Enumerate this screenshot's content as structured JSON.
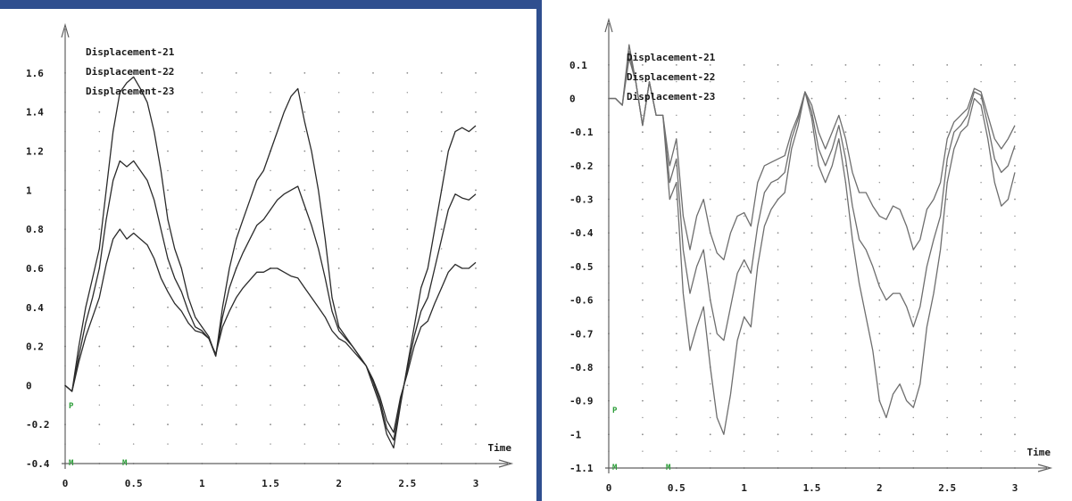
{
  "colors": {
    "frame_accent": "#2f4f8f",
    "grid_dot": "#8a8a8a",
    "axis": "#606060",
    "series_left": "#2b2b2b",
    "series_right": "#6e6e6e",
    "marker_green": "#2e9e3a"
  },
  "chart_data": [
    {
      "type": "line",
      "xlabel": "Time",
      "xlim": [
        0,
        3
      ],
      "ylim": [
        -0.4,
        1.7
      ],
      "x_ticks": [
        {
          "value": 0,
          "label": "0"
        },
        {
          "value": 0.5,
          "label": "0.5"
        },
        {
          "value": 1,
          "label": "1"
        },
        {
          "value": 1.5,
          "label": "1.5"
        },
        {
          "value": 2,
          "label": "2"
        },
        {
          "value": 2.5,
          "label": "2.5"
        },
        {
          "value": 3,
          "label": "3"
        }
      ],
      "y_ticks": [
        {
          "value": -0.4,
          "label": "-0.4"
        },
        {
          "value": -0.2,
          "label": "-0.2"
        },
        {
          "value": 0,
          "label": "0"
        },
        {
          "value": 0.2,
          "label": "0.2"
        },
        {
          "value": 0.4,
          "label": "0.4"
        },
        {
          "value": 0.6,
          "label": "0.6"
        },
        {
          "value": 0.8,
          "label": "0.8"
        },
        {
          "value": 1,
          "label": "1"
        },
        {
          "value": 1.2,
          "label": "1.2"
        },
        {
          "value": 1.4,
          "label": "1.4"
        },
        {
          "value": 1.6,
          "label": "1.6"
        }
      ],
      "grid": "dotted",
      "legend": "top-left",
      "series": [
        {
          "name": "Displacement-21",
          "x": [
            0,
            0.05,
            0.1,
            0.15,
            0.2,
            0.25,
            0.3,
            0.35,
            0.4,
            0.45,
            0.5,
            0.55,
            0.6,
            0.65,
            0.7,
            0.75,
            0.8,
            0.85,
            0.9,
            0.95,
            1.0,
            1.05,
            1.1,
            1.15,
            1.2,
            1.25,
            1.3,
            1.35,
            1.4,
            1.45,
            1.5,
            1.55,
            1.6,
            1.65,
            1.7,
            1.75,
            1.8,
            1.85,
            1.9,
            1.95,
            2.0,
            2.05,
            2.1,
            2.15,
            2.2,
            2.25,
            2.3,
            2.35,
            2.4,
            2.45,
            2.5,
            2.55,
            2.6,
            2.65,
            2.7,
            2.75,
            2.8,
            2.85,
            2.9,
            2.95,
            3.0
          ],
          "values": [
            0,
            -0.03,
            0.2,
            0.4,
            0.55,
            0.7,
            1.0,
            1.3,
            1.5,
            1.55,
            1.58,
            1.52,
            1.45,
            1.3,
            1.1,
            0.85,
            0.7,
            0.6,
            0.45,
            0.35,
            0.3,
            0.25,
            0.15,
            0.4,
            0.6,
            0.75,
            0.85,
            0.95,
            1.05,
            1.1,
            1.2,
            1.3,
            1.4,
            1.48,
            1.52,
            1.35,
            1.2,
            1.0,
            0.75,
            0.45,
            0.3,
            0.25,
            0.2,
            0.15,
            0.1,
            0.0,
            -0.1,
            -0.25,
            -0.32,
            -0.1,
            0.1,
            0.3,
            0.5,
            0.6,
            0.8,
            1.0,
            1.2,
            1.3,
            1.32,
            1.3,
            1.33
          ]
        },
        {
          "name": "Displacement-22",
          "x": [
            0,
            0.05,
            0.1,
            0.15,
            0.2,
            0.25,
            0.3,
            0.35,
            0.4,
            0.45,
            0.5,
            0.55,
            0.6,
            0.65,
            0.7,
            0.75,
            0.8,
            0.85,
            0.9,
            0.95,
            1.0,
            1.05,
            1.1,
            1.15,
            1.2,
            1.25,
            1.3,
            1.35,
            1.4,
            1.45,
            1.5,
            1.55,
            1.6,
            1.65,
            1.7,
            1.75,
            1.8,
            1.85,
            1.9,
            1.95,
            2.0,
            2.05,
            2.1,
            2.15,
            2.2,
            2.25,
            2.3,
            2.35,
            2.4,
            2.45,
            2.5,
            2.55,
            2.6,
            2.65,
            2.7,
            2.75,
            2.8,
            2.85,
            2.9,
            2.95,
            3.0
          ],
          "values": [
            0,
            -0.03,
            0.15,
            0.32,
            0.45,
            0.6,
            0.85,
            1.05,
            1.15,
            1.12,
            1.15,
            1.1,
            1.05,
            0.95,
            0.8,
            0.65,
            0.55,
            0.48,
            0.38,
            0.3,
            0.28,
            0.24,
            0.15,
            0.35,
            0.5,
            0.6,
            0.68,
            0.75,
            0.82,
            0.85,
            0.9,
            0.95,
            0.98,
            1.0,
            1.02,
            0.92,
            0.82,
            0.7,
            0.55,
            0.38,
            0.28,
            0.24,
            0.2,
            0.15,
            0.1,
            0.02,
            -0.08,
            -0.22,
            -0.28,
            -0.08,
            0.08,
            0.25,
            0.38,
            0.45,
            0.6,
            0.75,
            0.9,
            0.98,
            0.96,
            0.95,
            0.98
          ]
        },
        {
          "name": "Displacement-23",
          "x": [
            0,
            0.05,
            0.1,
            0.15,
            0.2,
            0.25,
            0.3,
            0.35,
            0.4,
            0.45,
            0.5,
            0.55,
            0.6,
            0.65,
            0.7,
            0.75,
            0.8,
            0.85,
            0.9,
            0.95,
            1.0,
            1.05,
            1.1,
            1.15,
            1.2,
            1.25,
            1.3,
            1.35,
            1.4,
            1.45,
            1.5,
            1.55,
            1.6,
            1.65,
            1.7,
            1.75,
            1.8,
            1.85,
            1.9,
            1.95,
            2.0,
            2.05,
            2.1,
            2.15,
            2.2,
            2.25,
            2.3,
            2.35,
            2.4,
            2.45,
            2.5,
            2.55,
            2.6,
            2.65,
            2.7,
            2.75,
            2.8,
            2.85,
            2.9,
            2.95,
            3.0
          ],
          "values": [
            0,
            -0.03,
            0.12,
            0.25,
            0.35,
            0.45,
            0.62,
            0.75,
            0.8,
            0.75,
            0.78,
            0.75,
            0.72,
            0.65,
            0.55,
            0.48,
            0.42,
            0.38,
            0.32,
            0.28,
            0.27,
            0.24,
            0.16,
            0.3,
            0.38,
            0.45,
            0.5,
            0.54,
            0.58,
            0.58,
            0.6,
            0.6,
            0.58,
            0.56,
            0.55,
            0.5,
            0.45,
            0.4,
            0.35,
            0.28,
            0.24,
            0.22,
            0.18,
            0.14,
            0.1,
            0.03,
            -0.06,
            -0.18,
            -0.24,
            -0.06,
            0.06,
            0.2,
            0.3,
            0.33,
            0.42,
            0.5,
            0.58,
            0.62,
            0.6,
            0.6,
            0.63
          ]
        }
      ]
    },
    {
      "type": "line",
      "xlabel": "Time",
      "xlim": [
        0,
        3
      ],
      "ylim": [
        -1.1,
        0.15
      ],
      "x_ticks": [
        {
          "value": 0,
          "label": "0"
        },
        {
          "value": 0.5,
          "label": "0.5"
        },
        {
          "value": 1,
          "label": "1"
        },
        {
          "value": 1.5,
          "label": "1.5"
        },
        {
          "value": 2,
          "label": "2"
        },
        {
          "value": 2.5,
          "label": "2.5"
        },
        {
          "value": 3,
          "label": "3"
        }
      ],
      "y_ticks": [
        {
          "value": -1.1,
          "label": "-1.1"
        },
        {
          "value": -1.0,
          "label": "-1"
        },
        {
          "value": -0.9,
          "label": "-0.9"
        },
        {
          "value": -0.8,
          "label": "-0.8"
        },
        {
          "value": -0.7,
          "label": "-0.7"
        },
        {
          "value": -0.6,
          "label": "-0.6"
        },
        {
          "value": -0.5,
          "label": "-0.5"
        },
        {
          "value": -0.4,
          "label": "-0.4"
        },
        {
          "value": -0.3,
          "label": "-0.3"
        },
        {
          "value": -0.2,
          "label": "-0.2"
        },
        {
          "value": -0.1,
          "label": "-0.1"
        },
        {
          "value": 0,
          "label": "0"
        },
        {
          "value": 0.1,
          "label": "0.1"
        }
      ],
      "grid": "dotted",
      "legend": "top-left",
      "series": [
        {
          "name": "Displacement-21",
          "x": [
            0,
            0.05,
            0.1,
            0.15,
            0.2,
            0.25,
            0.3,
            0.35,
            0.4,
            0.45,
            0.5,
            0.55,
            0.6,
            0.65,
            0.7,
            0.75,
            0.8,
            0.85,
            0.9,
            0.95,
            1.0,
            1.05,
            1.1,
            1.15,
            1.2,
            1.25,
            1.3,
            1.35,
            1.4,
            1.45,
            1.5,
            1.55,
            1.6,
            1.65,
            1.7,
            1.75,
            1.8,
            1.85,
            1.9,
            1.95,
            2.0,
            2.05,
            2.1,
            2.15,
            2.2,
            2.25,
            2.3,
            2.35,
            2.4,
            2.45,
            2.5,
            2.55,
            2.6,
            2.65,
            2.7,
            2.75,
            2.8,
            2.85,
            2.9,
            2.95,
            3.0
          ],
          "values": [
            0,
            0,
            -0.02,
            0.12,
            0.05,
            -0.08,
            0.05,
            -0.05,
            -0.05,
            -0.2,
            -0.12,
            -0.35,
            -0.45,
            -0.35,
            -0.3,
            -0.4,
            -0.46,
            -0.48,
            -0.4,
            -0.35,
            -0.34,
            -0.38,
            -0.25,
            -0.2,
            -0.19,
            -0.18,
            -0.17,
            -0.1,
            -0.05,
            0.02,
            -0.02,
            -0.1,
            -0.15,
            -0.1,
            -0.05,
            -0.12,
            -0.22,
            -0.28,
            -0.28,
            -0.32,
            -0.35,
            -0.36,
            -0.32,
            -0.33,
            -0.38,
            -0.45,
            -0.42,
            -0.33,
            -0.3,
            -0.25,
            -0.12,
            -0.07,
            -0.05,
            -0.03,
            0.03,
            0.02,
            -0.05,
            -0.12,
            -0.15,
            -0.12,
            -0.08
          ]
        },
        {
          "name": "Displacement-22",
          "x": [
            0,
            0.05,
            0.1,
            0.15,
            0.2,
            0.25,
            0.3,
            0.35,
            0.4,
            0.45,
            0.5,
            0.55,
            0.6,
            0.65,
            0.7,
            0.75,
            0.8,
            0.85,
            0.9,
            0.95,
            1.0,
            1.05,
            1.1,
            1.15,
            1.2,
            1.25,
            1.3,
            1.35,
            1.4,
            1.45,
            1.5,
            1.55,
            1.6,
            1.65,
            1.7,
            1.75,
            1.8,
            1.85,
            1.9,
            1.95,
            2.0,
            2.05,
            2.1,
            2.15,
            2.2,
            2.25,
            2.3,
            2.35,
            2.4,
            2.45,
            2.5,
            2.55,
            2.6,
            2.65,
            2.7,
            2.75,
            2.8,
            2.85,
            2.9,
            2.95,
            3.0
          ],
          "values": [
            0,
            0,
            -0.02,
            0.14,
            0.05,
            -0.08,
            0.05,
            -0.05,
            -0.05,
            -0.25,
            -0.18,
            -0.45,
            -0.58,
            -0.5,
            -0.45,
            -0.6,
            -0.7,
            -0.72,
            -0.62,
            -0.52,
            -0.48,
            -0.52,
            -0.38,
            -0.28,
            -0.25,
            -0.24,
            -0.22,
            -0.12,
            -0.06,
            0.02,
            -0.04,
            -0.15,
            -0.2,
            -0.15,
            -0.08,
            -0.18,
            -0.32,
            -0.42,
            -0.45,
            -0.5,
            -0.56,
            -0.6,
            -0.58,
            -0.58,
            -0.62,
            -0.68,
            -0.62,
            -0.5,
            -0.42,
            -0.35,
            -0.18,
            -0.1,
            -0.08,
            -0.05,
            0.02,
            0.01,
            -0.08,
            -0.18,
            -0.22,
            -0.2,
            -0.14
          ]
        },
        {
          "name": "Displacement-23",
          "x": [
            0,
            0.05,
            0.1,
            0.15,
            0.2,
            0.25,
            0.3,
            0.35,
            0.4,
            0.45,
            0.5,
            0.55,
            0.6,
            0.65,
            0.7,
            0.75,
            0.8,
            0.85,
            0.9,
            0.95,
            1.0,
            1.05,
            1.1,
            1.15,
            1.2,
            1.25,
            1.3,
            1.35,
            1.4,
            1.45,
            1.5,
            1.55,
            1.6,
            1.65,
            1.7,
            1.75,
            1.8,
            1.85,
            1.9,
            1.95,
            2.0,
            2.05,
            2.1,
            2.15,
            2.2,
            2.25,
            2.3,
            2.35,
            2.4,
            2.45,
            2.5,
            2.55,
            2.6,
            2.65,
            2.7,
            2.75,
            2.8,
            2.85,
            2.9,
            2.95,
            3.0
          ],
          "values": [
            0,
            0,
            -0.02,
            0.16,
            0.05,
            -0.08,
            0.05,
            -0.05,
            -0.05,
            -0.3,
            -0.25,
            -0.58,
            -0.75,
            -0.68,
            -0.62,
            -0.8,
            -0.95,
            -1.0,
            -0.88,
            -0.72,
            -0.65,
            -0.68,
            -0.5,
            -0.38,
            -0.33,
            -0.3,
            -0.28,
            -0.15,
            -0.08,
            0.02,
            -0.06,
            -0.2,
            -0.25,
            -0.2,
            -0.12,
            -0.25,
            -0.42,
            -0.55,
            -0.65,
            -0.75,
            -0.9,
            -0.95,
            -0.88,
            -0.85,
            -0.9,
            -0.92,
            -0.85,
            -0.68,
            -0.58,
            -0.45,
            -0.25,
            -0.15,
            -0.1,
            -0.08,
            0.0,
            -0.02,
            -0.12,
            -0.25,
            -0.32,
            -0.3,
            -0.22
          ]
        }
      ]
    }
  ],
  "markers": {
    "left": [
      "P",
      "M",
      "M"
    ],
    "right": [
      "P",
      "M",
      "M"
    ]
  }
}
